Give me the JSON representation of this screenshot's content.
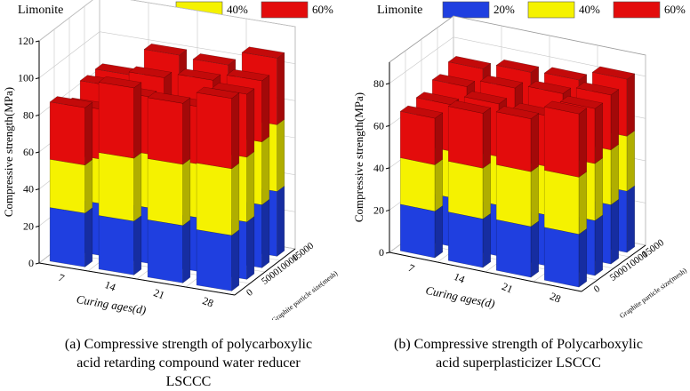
{
  "legend": {
    "title": "Limonite",
    "items": [
      {
        "label": "20%",
        "color": "#1f3fe0"
      },
      {
        "label": "40%",
        "color": "#f5f200"
      },
      {
        "label": "60%",
        "color": "#e30c0c"
      }
    ]
  },
  "chart_data": [
    {
      "type": "bar3d-stacked",
      "ylabel": "Compressive strength(MPa)",
      "xlabel": "Curing ages(d)",
      "zlabel": "Graphite particle size(mesh)",
      "x_ticks": [
        "7",
        "14",
        "21",
        "28"
      ],
      "z_ticks": [
        "0",
        "5000",
        "10000",
        "15000"
      ],
      "y_ticks": [
        "0",
        "20",
        "40",
        "60",
        "80",
        "100",
        "120"
      ],
      "ylim": [
        0,
        120
      ],
      "series_names": [
        "20%",
        "40%",
        "60%"
      ],
      "bars": [
        {
          "x": "7",
          "z": "0",
          "values": [
            29,
            26,
            31
          ]
        },
        {
          "x": "7",
          "z": "5000",
          "values": [
            28,
            24,
            27
          ]
        },
        {
          "x": "7",
          "z": "10000",
          "values": [
            30,
            27,
            28
          ]
        },
        {
          "x": "7",
          "z": "15000",
          "values": [
            31,
            28,
            26
          ]
        },
        {
          "x": "14",
          "z": "0",
          "values": [
            29,
            34,
            38
          ]
        },
        {
          "x": "14",
          "z": "5000",
          "values": [
            30,
            29,
            31
          ]
        },
        {
          "x": "14",
          "z": "10000",
          "values": [
            33,
            31,
            30
          ]
        },
        {
          "x": "14",
          "z": "15000",
          "values": [
            34,
            33,
            33
          ]
        },
        {
          "x": "21",
          "z": "0",
          "values": [
            31,
            33,
            33
          ]
        },
        {
          "x": "21",
          "z": "5000",
          "values": [
            29,
            29,
            31
          ]
        },
        {
          "x": "21",
          "z": "10000",
          "values": [
            33,
            31,
            33
          ]
        },
        {
          "x": "21",
          "z": "15000",
          "values": [
            34,
            32,
            33
          ]
        },
        {
          "x": "28",
          "z": "0",
          "values": [
            30,
            36,
            38
          ]
        },
        {
          "x": "28",
          "z": "5000",
          "values": [
            31,
            35,
            34
          ]
        },
        {
          "x": "28",
          "z": "10000",
          "values": [
            34,
            34,
            33
          ]
        },
        {
          "x": "28",
          "z": "15000",
          "values": [
            35,
            36,
            36
          ]
        }
      ],
      "caption": "(a) Compressive strength of polycarboxylic acid retarding compound water reducer LSCCC"
    },
    {
      "type": "bar3d-stacked",
      "ylabel": "Compressive strength(MPa)",
      "xlabel": "Curing ages(d)",
      "zlabel": "Graphite particle size(mesh)",
      "x_ticks": [
        "7",
        "14",
        "21",
        "28"
      ],
      "z_ticks": [
        "0",
        "5000",
        "10000",
        "15000"
      ],
      "y_ticks": [
        "0",
        "20",
        "40",
        "60",
        "80"
      ],
      "ylim": [
        0,
        90
      ],
      "series_names": [
        "20%",
        "40%",
        "60%"
      ],
      "bars": [
        {
          "x": "7",
          "z": "0",
          "values": [
            22,
            22,
            22
          ]
        },
        {
          "x": "7",
          "z": "5000",
          "values": [
            23,
            22,
            22
          ]
        },
        {
          "x": "7",
          "z": "10000",
          "values": [
            24,
            23,
            23
          ]
        },
        {
          "x": "7",
          "z": "15000",
          "values": [
            25,
            24,
            24
          ]
        },
        {
          "x": "14",
          "z": "0",
          "values": [
            23,
            24,
            26
          ]
        },
        {
          "x": "14",
          "z": "5000",
          "values": [
            24,
            23,
            25
          ]
        },
        {
          "x": "14",
          "z": "10000",
          "values": [
            26,
            24,
            24
          ]
        },
        {
          "x": "14",
          "z": "15000",
          "values": [
            27,
            25,
            24
          ]
        },
        {
          "x": "21",
          "z": "0",
          "values": [
            24,
            26,
            25
          ]
        },
        {
          "x": "21",
          "z": "5000",
          "values": [
            24,
            23,
            24
          ]
        },
        {
          "x": "21",
          "z": "10000",
          "values": [
            27,
            24,
            25
          ]
        },
        {
          "x": "21",
          "z": "15000",
          "values": [
            27,
            25,
            25
          ]
        },
        {
          "x": "28",
          "z": "0",
          "values": [
            25,
            27,
            30
          ]
        },
        {
          "x": "28",
          "z": "5000",
          "values": [
            26,
            27,
            26
          ]
        },
        {
          "x": "28",
          "z": "10000",
          "values": [
            28,
            26,
            26
          ]
        },
        {
          "x": "28",
          "z": "15000",
          "values": [
            29,
            26,
            27
          ]
        }
      ],
      "caption": "(b) Compressive strength of Polycarboxylic acid superplasticizer LSCCC"
    }
  ]
}
